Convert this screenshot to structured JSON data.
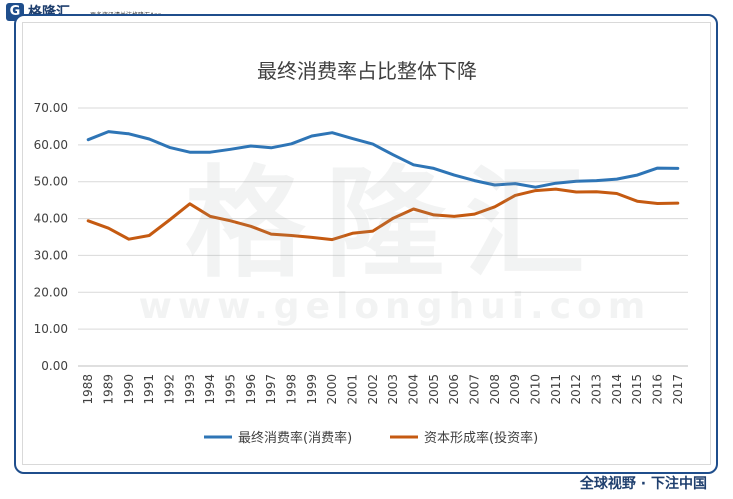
{
  "brand": {
    "logo_letter": "G",
    "name": "格隆汇",
    "url": "www.gelonghui.com",
    "tagline": "更多资讯请关注格隆汇App",
    "watermark_cn": "格隆汇",
    "watermark_url": "www.gelonghui.com",
    "slogan": "全球视野 · 下注中国"
  },
  "colors": {
    "frame": "#1f4e8c",
    "series1": "#2e75b6",
    "series2": "#c55a11"
  },
  "chart_data": {
    "type": "line",
    "title": "最终消费率占比整体下降",
    "xlabel": "",
    "ylabel": "",
    "ylim": [
      0,
      70
    ],
    "yticks": [
      "0.00",
      "10.00",
      "20.00",
      "30.00",
      "40.00",
      "50.00",
      "60.00",
      "70.00"
    ],
    "grid": true,
    "legend_position": "bottom",
    "categories": [
      "1988",
      "1989",
      "1990",
      "1991",
      "1992",
      "1993",
      "1994",
      "1995",
      "1996",
      "1997",
      "1998",
      "1999",
      "2000",
      "2001",
      "2002",
      "2003",
      "2004",
      "2005",
      "2006",
      "2007",
      "2008",
      "2009",
      "2010",
      "2011",
      "2012",
      "2013",
      "2014",
      "2015",
      "2016",
      "2017"
    ],
    "series": [
      {
        "name": "最终消费率(消费率)",
        "color": "#2e75b6",
        "values": [
          61.4,
          63.6,
          63.0,
          61.6,
          59.3,
          58.0,
          58.0,
          58.8,
          59.7,
          59.2,
          60.3,
          62.4,
          63.3,
          61.7,
          60.2,
          57.3,
          54.6,
          53.6,
          51.8,
          50.3,
          49.1,
          49.5,
          48.5,
          49.6,
          50.1,
          50.3,
          50.7,
          51.8,
          53.7,
          53.6
        ]
      },
      {
        "name": "资本形成率(投资率)",
        "color": "#c55a11",
        "values": [
          39.4,
          37.4,
          34.4,
          35.4,
          39.6,
          44.0,
          40.6,
          39.4,
          37.9,
          35.8,
          35.4,
          34.9,
          34.3,
          36.0,
          36.6,
          40.1,
          42.6,
          41.0,
          40.6,
          41.2,
          43.2,
          46.3,
          47.6,
          48.0,
          47.2,
          47.3,
          46.8,
          44.7,
          44.1,
          44.2
        ]
      }
    ]
  }
}
